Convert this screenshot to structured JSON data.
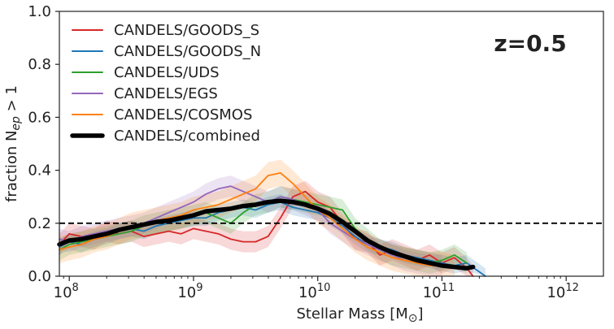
{
  "chart_data": {
    "type": "line",
    "xscale": "log",
    "xlim_log10": [
      7.92,
      12.3
    ],
    "ylim": [
      0.0,
      1.0
    ],
    "xlabel_main": "Stellar Mass [M",
    "xlabel_sub": "⊙",
    "xlabel_end": "]",
    "ylabel_main": "fraction N",
    "ylabel_sub": "ep",
    "ylabel_end": " > 1",
    "annotation": "z=0.5",
    "threshold": 0.2,
    "xtick_base": "10",
    "xticks": [
      {
        "exp": "8",
        "log": 8
      },
      {
        "exp": "9",
        "log": 9
      },
      {
        "exp": "10",
        "log": 10
      },
      {
        "exp": "11",
        "log": 11
      },
      {
        "exp": "12",
        "log": 12
      }
    ],
    "yticks": [
      {
        "label": "0.0",
        "value": 0.0
      },
      {
        "label": "0.2",
        "value": 0.2
      },
      {
        "label": "0.4",
        "value": 0.4
      },
      {
        "label": "0.6",
        "value": 0.6
      },
      {
        "label": "0.8",
        "value": 0.8
      },
      {
        "label": "1.0",
        "value": 1.0
      }
    ],
    "legend_position": "upper-left",
    "series": [
      {
        "name": "CANDELS/GOODS_S",
        "color": "#d62728",
        "band": 0.04,
        "x": [
          7.92,
          8.0,
          8.1,
          8.2,
          8.3,
          8.4,
          8.5,
          8.6,
          8.7,
          8.8,
          8.9,
          9.0,
          9.1,
          9.2,
          9.3,
          9.4,
          9.5,
          9.6,
          9.7,
          9.8,
          9.9,
          10.0,
          10.1,
          10.2,
          10.3,
          10.4,
          10.5,
          10.6,
          10.7,
          10.8,
          10.9,
          11.0,
          11.1,
          11.2,
          11.25
        ],
        "y": [
          0.12,
          0.16,
          0.15,
          0.14,
          0.17,
          0.16,
          0.17,
          0.15,
          0.16,
          0.17,
          0.16,
          0.18,
          0.17,
          0.16,
          0.14,
          0.13,
          0.13,
          0.15,
          0.22,
          0.3,
          0.32,
          0.28,
          0.26,
          0.2,
          0.14,
          0.13,
          0.08,
          0.1,
          0.08,
          0.06,
          0.08,
          0.05,
          0.07,
          0.03,
          0.0
        ]
      },
      {
        "name": "CANDELS/GOODS_N",
        "color": "#1f77b4",
        "band": 0.03,
        "x": [
          7.92,
          8.0,
          8.1,
          8.2,
          8.3,
          8.4,
          8.5,
          8.6,
          8.7,
          8.8,
          8.9,
          9.0,
          9.1,
          9.2,
          9.3,
          9.4,
          9.5,
          9.6,
          9.7,
          9.8,
          9.9,
          10.0,
          10.1,
          10.2,
          10.3,
          10.4,
          10.5,
          10.6,
          10.7,
          10.8,
          10.9,
          11.0,
          11.1,
          11.2,
          11.35
        ],
        "y": [
          0.11,
          0.13,
          0.12,
          0.14,
          0.15,
          0.17,
          0.18,
          0.17,
          0.19,
          0.2,
          0.21,
          0.22,
          0.22,
          0.24,
          0.25,
          0.26,
          0.25,
          0.27,
          0.28,
          0.26,
          0.25,
          0.24,
          0.22,
          0.19,
          0.15,
          0.12,
          0.11,
          0.1,
          0.08,
          0.07,
          0.06,
          0.05,
          0.04,
          0.05,
          0.0
        ]
      },
      {
        "name": "CANDELS/UDS",
        "color": "#2ca02c",
        "band": 0.04,
        "x": [
          7.92,
          8.0,
          8.1,
          8.2,
          8.3,
          8.4,
          8.5,
          8.6,
          8.7,
          8.8,
          8.9,
          9.0,
          9.1,
          9.2,
          9.3,
          9.4,
          9.5,
          9.6,
          9.7,
          9.8,
          9.9,
          10.0,
          10.1,
          10.2,
          10.3,
          10.4,
          10.5,
          10.6,
          10.7,
          10.8,
          10.9,
          11.0,
          11.1,
          11.2
        ],
        "y": [
          0.1,
          0.12,
          0.13,
          0.14,
          0.15,
          0.16,
          0.17,
          0.19,
          0.2,
          0.21,
          0.22,
          0.23,
          0.24,
          0.22,
          0.2,
          0.24,
          0.27,
          0.28,
          0.3,
          0.29,
          0.28,
          0.27,
          0.26,
          0.25,
          0.18,
          0.14,
          0.1,
          0.08,
          0.07,
          0.06,
          0.05,
          0.06,
          0.08,
          0.05
        ]
      },
      {
        "name": "CANDELS/EGS",
        "color": "#9467bd",
        "band": 0.04,
        "x": [
          7.92,
          8.0,
          8.1,
          8.2,
          8.3,
          8.4,
          8.5,
          8.6,
          8.7,
          8.8,
          8.9,
          9.0,
          9.1,
          9.2,
          9.3,
          9.4,
          9.5,
          9.6,
          9.7,
          9.8,
          9.9,
          10.0,
          10.1,
          10.2,
          10.3,
          10.4,
          10.5,
          10.6,
          10.7,
          10.8,
          10.9,
          11.0
        ],
        "y": [
          0.14,
          0.13,
          0.15,
          0.16,
          0.17,
          0.18,
          0.19,
          0.2,
          0.22,
          0.24,
          0.26,
          0.28,
          0.31,
          0.33,
          0.34,
          0.32,
          0.3,
          0.28,
          0.3,
          0.29,
          0.27,
          0.25,
          0.2,
          0.17,
          0.14,
          0.12,
          0.1,
          0.08,
          0.06,
          0.05,
          0.04,
          0.04
        ]
      },
      {
        "name": "CANDELS/COSMOS",
        "color": "#ff7f0e",
        "band": 0.05,
        "x": [
          7.92,
          8.0,
          8.1,
          8.2,
          8.3,
          8.4,
          8.5,
          8.6,
          8.7,
          8.8,
          8.9,
          9.0,
          9.1,
          9.2,
          9.3,
          9.4,
          9.5,
          9.6,
          9.7,
          9.8,
          9.9,
          10.0,
          10.1,
          10.2,
          10.3,
          10.4,
          10.5,
          10.6,
          10.7,
          10.8,
          10.9,
          11.0,
          11.1
        ],
        "y": [
          0.1,
          0.11,
          0.12,
          0.14,
          0.15,
          0.17,
          0.19,
          0.2,
          0.21,
          0.22,
          0.23,
          0.25,
          0.26,
          0.27,
          0.29,
          0.31,
          0.33,
          0.38,
          0.39,
          0.35,
          0.3,
          0.25,
          0.22,
          0.18,
          0.14,
          0.11,
          0.09,
          0.07,
          0.06,
          0.05,
          0.04,
          0.04,
          0.03
        ]
      },
      {
        "name": "CANDELS/combined",
        "color": "#000000",
        "band": 0,
        "x": [
          7.92,
          8.0,
          8.1,
          8.2,
          8.3,
          8.4,
          8.5,
          8.6,
          8.7,
          8.8,
          8.9,
          9.0,
          9.1,
          9.2,
          9.3,
          9.4,
          9.5,
          9.6,
          9.7,
          9.8,
          9.9,
          10.0,
          10.1,
          10.2,
          10.3,
          10.4,
          10.5,
          10.6,
          10.7,
          10.8,
          10.9,
          11.0,
          11.1,
          11.2,
          11.25
        ],
        "y": [
          0.12,
          0.135,
          0.14,
          0.15,
          0.16,
          0.175,
          0.185,
          0.195,
          0.205,
          0.21,
          0.22,
          0.23,
          0.245,
          0.25,
          0.255,
          0.265,
          0.27,
          0.28,
          0.285,
          0.28,
          0.27,
          0.255,
          0.235,
          0.205,
          0.17,
          0.135,
          0.11,
          0.09,
          0.075,
          0.06,
          0.05,
          0.04,
          0.035,
          0.03,
          0.035
        ]
      }
    ]
  }
}
